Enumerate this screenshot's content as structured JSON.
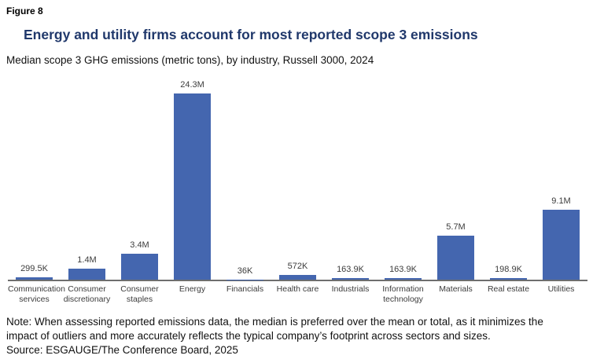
{
  "figure": {
    "label": "Figure 8",
    "title": "Energy and utility firms account for most reported scope 3 emissions",
    "subtitle": "Median scope 3 GHG emissions (metric tons), by industry, Russell 3000, 2024",
    "note": "Note: When assessing reported emissions data, the median is preferred over the mean or total, as it minimizes the impact of outliers and more accurately reflects the typical company’s footprint across sectors and sizes.",
    "source": "Source: ESGAUGE/The Conference Board, 2025"
  },
  "colors": {
    "bar": "#4466af",
    "title": "#20386b",
    "axis": "#6e6e6e"
  },
  "chart_data": {
    "type": "bar",
    "title": "Energy and utility firms account for most reported scope 3 emissions",
    "subtitle": "Median scope 3 GHG emissions (metric tons), by industry, Russell 3000, 2024",
    "unit": "metric tons",
    "categories": [
      "Communication services",
      "Consumer discretionary",
      "Consumer staples",
      "Energy",
      "Financials",
      "Health care",
      "Industrials",
      "Information technology",
      "Materials",
      "Real estate",
      "Utilities"
    ],
    "values": [
      299500,
      1400000,
      3400000,
      24300000,
      36000,
      572000,
      163900,
      163900,
      5700000,
      198900,
      9100000
    ],
    "value_labels": [
      "299.5K",
      "1.4M",
      "3.4M",
      "24.3M",
      "36K",
      "572K",
      "163.9K",
      "163.9K",
      "5.7M",
      "198.9K",
      "9.1M"
    ],
    "xlabel": "",
    "ylabel": "Median scope 3 GHG emissions (metric tons)",
    "ylim": [
      0,
      24300000
    ],
    "grid": false,
    "legend": false,
    "y_axis_visible": false,
    "data_labels": "above bars"
  }
}
